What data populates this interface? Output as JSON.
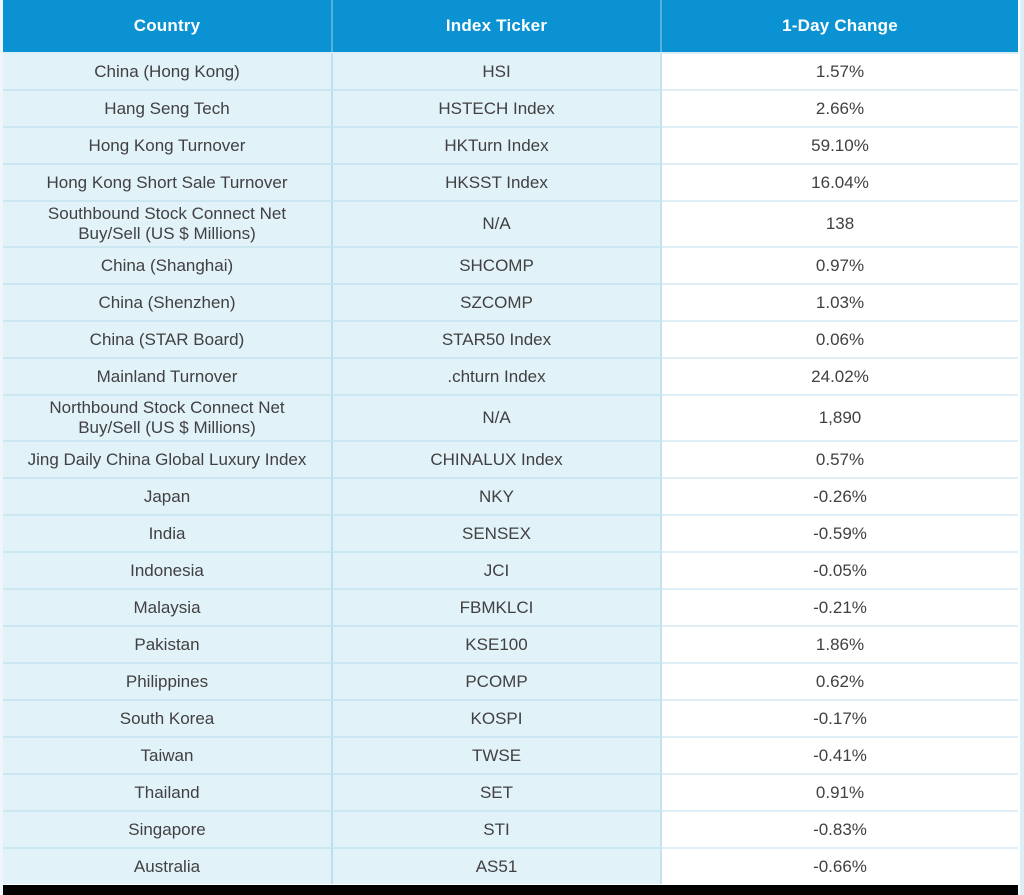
{
  "chart_data": {
    "type": "table",
    "title": "",
    "columns": [
      "Country",
      "Index Ticker",
      "1-Day Change"
    ],
    "rows": [
      {
        "country": "China (Hong Kong)",
        "ticker": "HSI",
        "change": "1.57%"
      },
      {
        "country": "Hang Seng Tech",
        "ticker": "HSTECH Index",
        "change": "2.66%"
      },
      {
        "country": "Hong Kong Turnover",
        "ticker": "HKTurn Index",
        "change": "59.10%"
      },
      {
        "country": "Hong Kong Short Sale Turnover",
        "ticker": "HKSST Index",
        "change": "16.04%"
      },
      {
        "country": "Southbound Stock Connect Net\nBuy/Sell (US $ Millions)",
        "ticker": "N/A",
        "change": "138"
      },
      {
        "country": "China (Shanghai)",
        "ticker": "SHCOMP",
        "change": "0.97%"
      },
      {
        "country": "China (Shenzhen)",
        "ticker": "SZCOMP",
        "change": "1.03%"
      },
      {
        "country": "China (STAR Board)",
        "ticker": "STAR50 Index",
        "change": "0.06%"
      },
      {
        "country": "Mainland Turnover",
        "ticker": ".chturn Index",
        "change": "24.02%"
      },
      {
        "country": "Northbound Stock Connect Net\nBuy/Sell (US $ Millions)",
        "ticker": "N/A",
        "change": "1,890"
      },
      {
        "country": "Jing Daily China Global Luxury Index",
        "ticker": "CHINALUX Index",
        "change": "0.57%"
      },
      {
        "country": "Japan",
        "ticker": "NKY",
        "change": "-0.26%"
      },
      {
        "country": "India",
        "ticker": "SENSEX",
        "change": "-0.59%"
      },
      {
        "country": "Indonesia",
        "ticker": "JCI",
        "change": "-0.05%"
      },
      {
        "country": "Malaysia",
        "ticker": "FBMKLCI",
        "change": "-0.21%"
      },
      {
        "country": "Pakistan",
        "ticker": "KSE100",
        "change": "1.86%"
      },
      {
        "country": "Philippines",
        "ticker": "PCOMP",
        "change": "0.62%"
      },
      {
        "country": "South Korea",
        "ticker": "KOSPI",
        "change": "-0.17%"
      },
      {
        "country": "Taiwan",
        "ticker": "TWSE",
        "change": "-0.41%"
      },
      {
        "country": "Thailand",
        "ticker": "SET",
        "change": "0.91%"
      },
      {
        "country": "Singapore",
        "ticker": "STI",
        "change": "-0.83%"
      },
      {
        "country": "Australia",
        "ticker": "AS51",
        "change": "-0.66%"
      }
    ]
  },
  "colors": {
    "header_bg": "#0b92d2",
    "header_text": "#ffffff",
    "row_bg": "#e1f2f9",
    "value_column_bg": "#ffffff",
    "body_text": "#414042",
    "divider": "#cbe7f2",
    "header_divider": "#55b2de",
    "bottom_bar": "#010101"
  }
}
